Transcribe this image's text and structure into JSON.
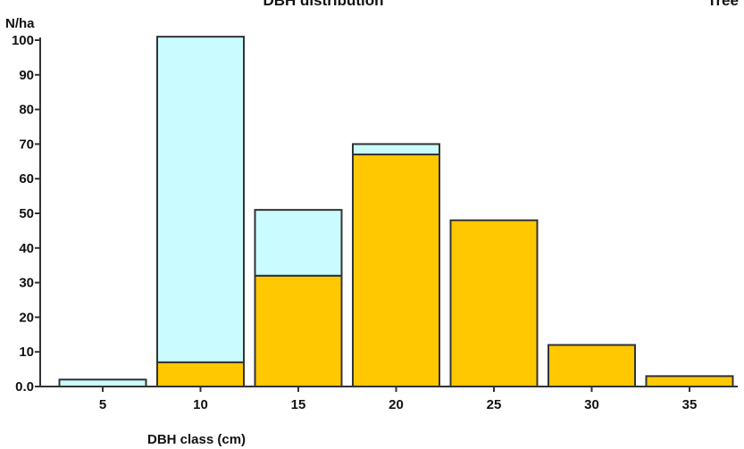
{
  "chart_data": {
    "type": "bar",
    "title": "DBH distribution",
    "corner_label": "Tree",
    "ylabel": "N/ha",
    "xlabel": "DBH class (cm)",
    "ylim": [
      0,
      100
    ],
    "ytick_labels": [
      "0.0",
      "10",
      "20",
      "30",
      "40",
      "50",
      "60",
      "70",
      "80",
      "90",
      "100"
    ],
    "yticks": [
      0,
      10,
      20,
      30,
      40,
      50,
      60,
      70,
      80,
      90,
      100
    ],
    "categories": [
      "5",
      "10",
      "15",
      "20",
      "25",
      "30",
      "35"
    ],
    "stacked": true,
    "series": [
      {
        "color": "#FFC800",
        "values": [
          0,
          7,
          32,
          67,
          48,
          12,
          3
        ]
      },
      {
        "color": "#C9FBFF",
        "values": [
          2,
          94,
          19,
          3,
          0,
          0,
          0
        ]
      }
    ],
    "legend": "none",
    "grid": false
  },
  "colors": {
    "axis": "#333333",
    "bar_border": "#333333"
  }
}
